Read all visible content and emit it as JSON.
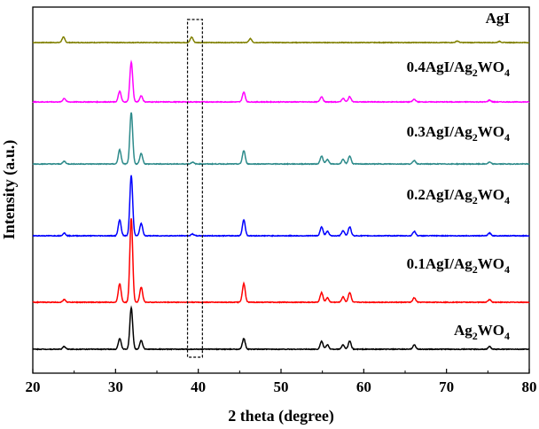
{
  "chart_data": {
    "type": "line",
    "title": "",
    "xlabel": "2 theta (degree)",
    "ylabel": "Intensity (a.u.)",
    "xlim": [
      20,
      80
    ],
    "x_ticks": [
      20,
      30,
      40,
      50,
      60,
      70,
      80
    ],
    "x_tick_labels": [
      "20",
      "30",
      "40",
      "50",
      "60",
      "70",
      "80"
    ],
    "y_ticks_shown": false,
    "highlight_box": {
      "x_range": [
        38.7,
        40.5
      ],
      "style": "dashed"
    },
    "series": [
      {
        "name": "AgI",
        "label_parts": [
          {
            "t": "AgI",
            "sub": false
          }
        ],
        "color": "#808000",
        "offset": 0.0,
        "scale": 0.35,
        "peaks": [
          [
            23.7,
            7
          ],
          [
            39.2,
            7
          ],
          [
            46.3,
            5
          ],
          [
            71.3,
            2
          ],
          [
            76.4,
            1.5
          ]
        ]
      },
      {
        "name": "0.4AgI/Ag2WO4",
        "label_parts": [
          {
            "t": "0.4AgI/Ag",
            "sub": false
          },
          {
            "t": "2",
            "sub": true
          },
          {
            "t": "WO",
            "sub": false
          },
          {
            "t": "4",
            "sub": true
          }
        ],
        "color": "#ff00ff",
        "offset": 0.0,
        "scale": 0.4,
        "peaks": [
          [
            23.8,
            4
          ],
          [
            30.5,
            12
          ],
          [
            31.9,
            45
          ],
          [
            33.1,
            7
          ],
          [
            45.5,
            11
          ],
          [
            54.9,
            6
          ],
          [
            57.5,
            4
          ],
          [
            58.3,
            6
          ],
          [
            66.1,
            3
          ],
          [
            75.2,
            2
          ]
        ]
      },
      {
        "name": "0.3AgI/Ag2WO4",
        "label_parts": [
          {
            "t": "0.3AgI/Ag",
            "sub": false
          },
          {
            "t": "2",
            "sub": true
          },
          {
            "t": "WO",
            "sub": false
          },
          {
            "t": "4",
            "sub": true
          }
        ],
        "color": "#2e8b8b",
        "offset": 0.0,
        "scale": 0.4,
        "peaks": [
          [
            23.8,
            3
          ],
          [
            30.5,
            16
          ],
          [
            31.9,
            58
          ],
          [
            33.1,
            12
          ],
          [
            39.3,
            2
          ],
          [
            45.5,
            15
          ],
          [
            54.9,
            9
          ],
          [
            55.6,
            5
          ],
          [
            57.5,
            5
          ],
          [
            58.3,
            9
          ],
          [
            66.1,
            4
          ],
          [
            75.2,
            2
          ]
        ]
      },
      {
        "name": "0.2AgI/Ag2WO4",
        "label_parts": [
          {
            "t": "0.2AgI/Ag",
            "sub": false
          },
          {
            "t": "2",
            "sub": true
          },
          {
            "t": "WO",
            "sub": false
          },
          {
            "t": "4",
            "sub": true
          }
        ],
        "color": "#0000ff",
        "offset": 0.0,
        "scale": 0.4,
        "peaks": [
          [
            23.8,
            3
          ],
          [
            30.5,
            18
          ],
          [
            31.9,
            68
          ],
          [
            33.1,
            14
          ],
          [
            39.3,
            2
          ],
          [
            45.5,
            18
          ],
          [
            54.9,
            10
          ],
          [
            55.6,
            5
          ],
          [
            57.5,
            6
          ],
          [
            58.3,
            10
          ],
          [
            66.1,
            5
          ],
          [
            75.2,
            3
          ]
        ]
      },
      {
        "name": "0.1AgI/Ag2WO4",
        "label_parts": [
          {
            "t": "0.1AgI/Ag",
            "sub": false
          },
          {
            "t": "2",
            "sub": true
          },
          {
            "t": "WO",
            "sub": false
          },
          {
            "t": "4",
            "sub": true
          }
        ],
        "color": "#ff0000",
        "offset": 0.0,
        "scale": 0.4,
        "peaks": [
          [
            23.8,
            3
          ],
          [
            30.5,
            21
          ],
          [
            31.9,
            95
          ],
          [
            33.1,
            17
          ],
          [
            45.5,
            21
          ],
          [
            54.9,
            11
          ],
          [
            55.6,
            5
          ],
          [
            57.5,
            6
          ],
          [
            58.3,
            11
          ],
          [
            66.1,
            5
          ],
          [
            75.2,
            3
          ]
        ]
      },
      {
        "name": "Ag2WO4",
        "label_parts": [
          {
            "t": "Ag",
            "sub": false
          },
          {
            "t": "2",
            "sub": true
          },
          {
            "t": "WO",
            "sub": false
          },
          {
            "t": "4",
            "sub": true
          }
        ],
        "color": "#000000",
        "offset": 0.0,
        "scale": 0.4,
        "peaks": [
          [
            23.8,
            3
          ],
          [
            30.5,
            12
          ],
          [
            31.9,
            47
          ],
          [
            33.1,
            10
          ],
          [
            45.5,
            12
          ],
          [
            54.9,
            9
          ],
          [
            55.6,
            5
          ],
          [
            57.5,
            5
          ],
          [
            58.3,
            9
          ],
          [
            66.1,
            5
          ],
          [
            75.2,
            3
          ]
        ]
      }
    ]
  }
}
